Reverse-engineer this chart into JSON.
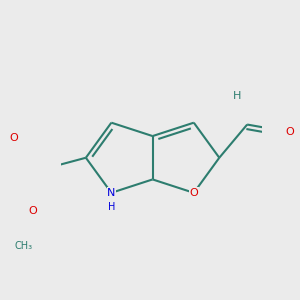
{
  "bg": "#ebebeb",
  "bc": "#2d7d6f",
  "nc": "#0000dd",
  "oc": "#dd0000",
  "lw": 1.5,
  "afs": 8.0,
  "hfs": 7.0,
  "BL": 0.95,
  "dg": 0.1,
  "ds": 0.1,
  "xlim": [
    -2.0,
    2.4
  ],
  "ylim": [
    -1.6,
    2.0
  ]
}
